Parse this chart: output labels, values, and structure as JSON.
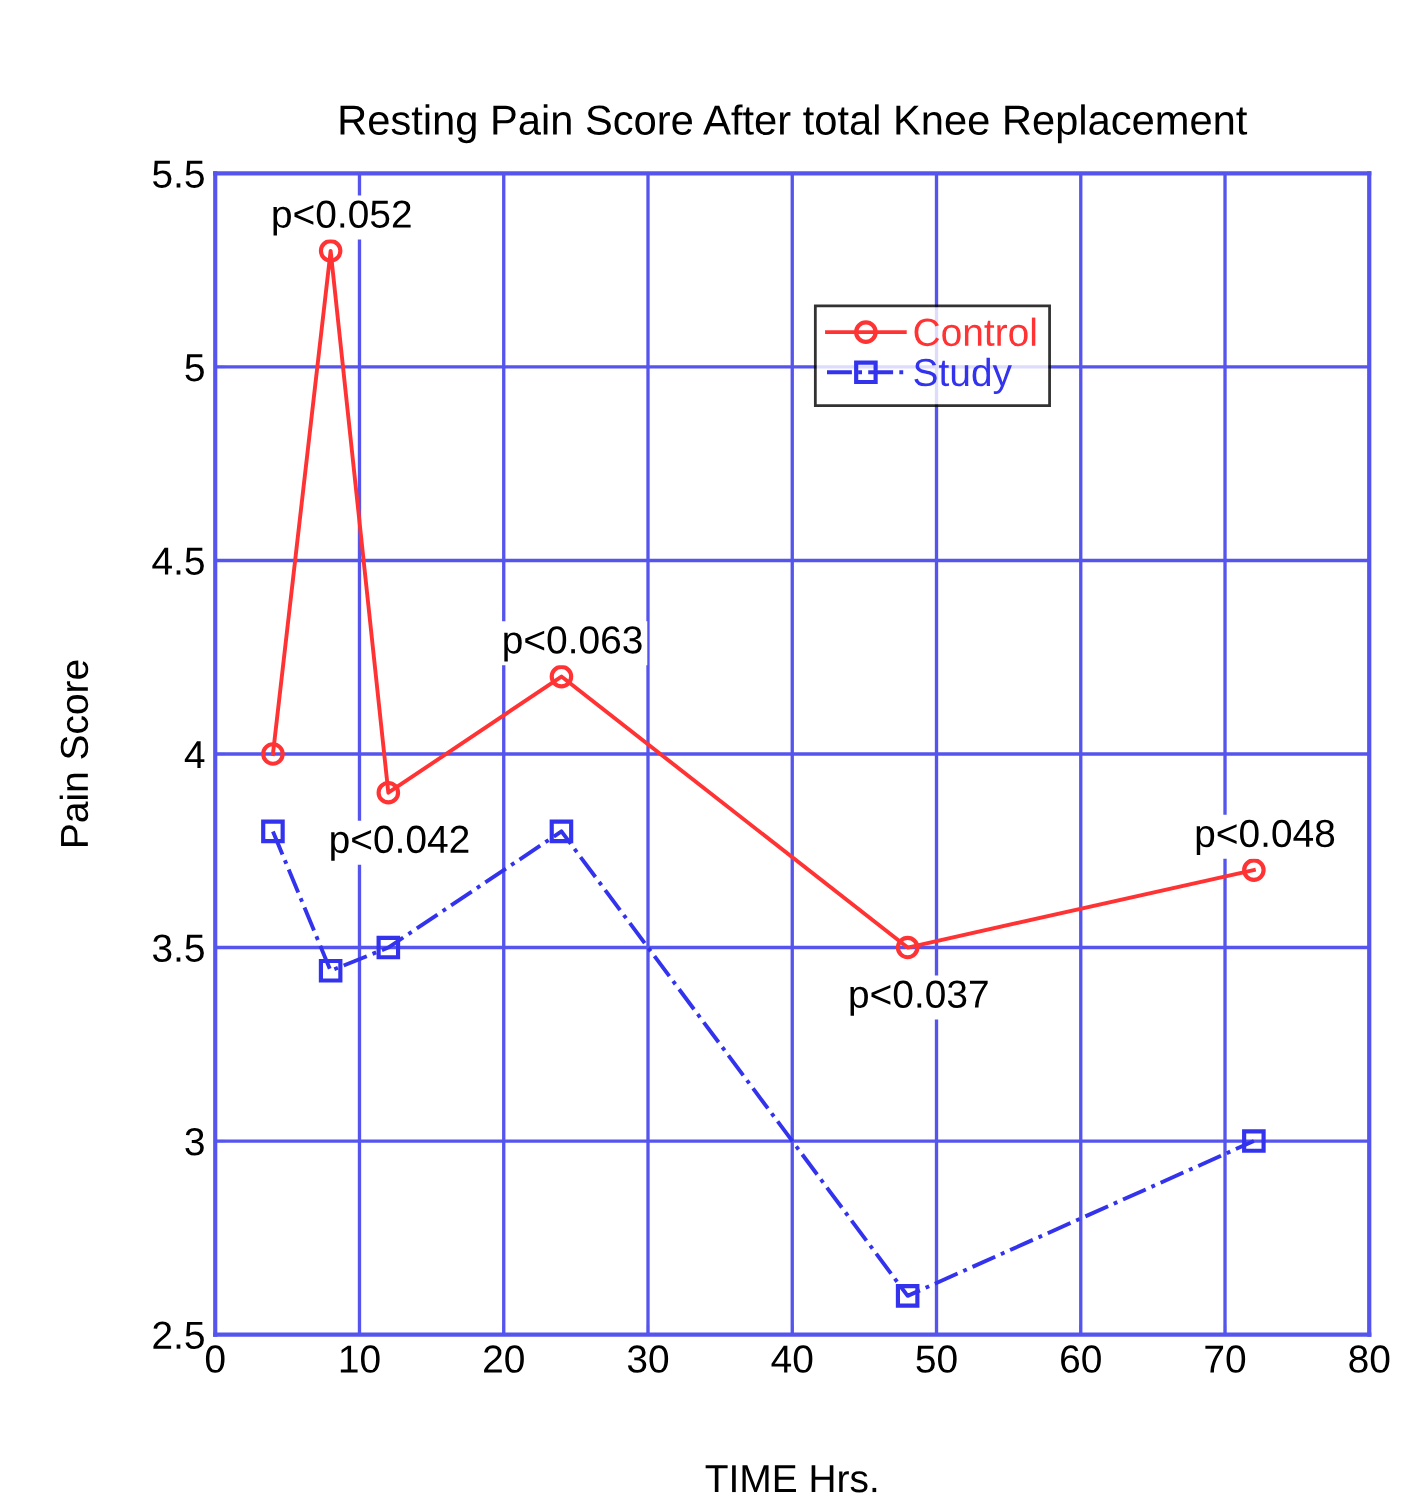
{
  "chart_data": {
    "type": "line",
    "title": "Resting Pain Score After total Knee Replacement",
    "xlabel": "TIME Hrs.",
    "ylabel": "Pain Score",
    "x": [
      4,
      8,
      12,
      24,
      48,
      72
    ],
    "series": [
      {
        "name": "Control",
        "color": "#ff3333",
        "values": [
          4.0,
          5.3,
          3.9,
          4.2,
          3.5,
          3.7
        ],
        "marker": "circle",
        "line_style": "solid"
      },
      {
        "name": "Study",
        "color": "#3333ee",
        "values": [
          3.8,
          3.44,
          3.5,
          3.8,
          2.6,
          3.0
        ],
        "marker": "square",
        "line_style": "dashed"
      }
    ],
    "annotations": [
      {
        "text": "p<0.052",
        "x": 8,
        "y": 5.3
      },
      {
        "text": "p<0.042",
        "x": 12,
        "y": 3.9
      },
      {
        "text": "p<0.063",
        "x": 24,
        "y": 4.2
      },
      {
        "text": "p<0.037",
        "x": 48,
        "y": 3.5
      },
      {
        "text": "p<0.048",
        "x": 72,
        "y": 3.7
      }
    ],
    "xlim": [
      0,
      80
    ],
    "xticks": [
      0,
      10,
      20,
      30,
      40,
      50,
      60,
      70,
      80
    ],
    "ylim": [
      2.5,
      5.5
    ],
    "yticks": [
      2.5,
      3,
      3.5,
      4,
      4.5,
      5,
      5.5
    ],
    "grid": true,
    "legend": "top right"
  }
}
